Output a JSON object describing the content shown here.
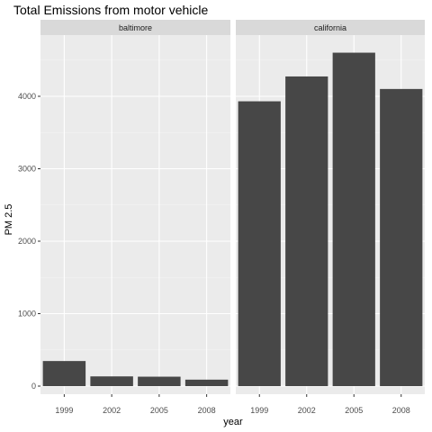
{
  "chart_data": {
    "type": "bar",
    "title": "Total Emissions from motor vehicle",
    "xlabel": "year",
    "ylabel": "PM 2.5",
    "categories": [
      "1999",
      "2002",
      "2005",
      "2008"
    ],
    "ylim": [
      0,
      4800
    ],
    "yticks": [
      0,
      1000,
      2000,
      3000,
      4000
    ],
    "yticks_labels": [
      "0",
      "1000",
      "2000",
      "3000",
      "4000"
    ],
    "grid": true,
    "legend": "none",
    "facets": [
      {
        "name": "baltimore",
        "values": [
          346,
          134,
          130,
          89
        ]
      },
      {
        "name": "california",
        "values": [
          3931,
          4274,
          4602,
          4101
        ]
      }
    ],
    "colors": {
      "bar": "#474747",
      "panel": "#ebebeb",
      "strip": "#d9d9d9",
      "grid_major": "#ffffff",
      "grid_minor": "#f5f5f5"
    }
  }
}
